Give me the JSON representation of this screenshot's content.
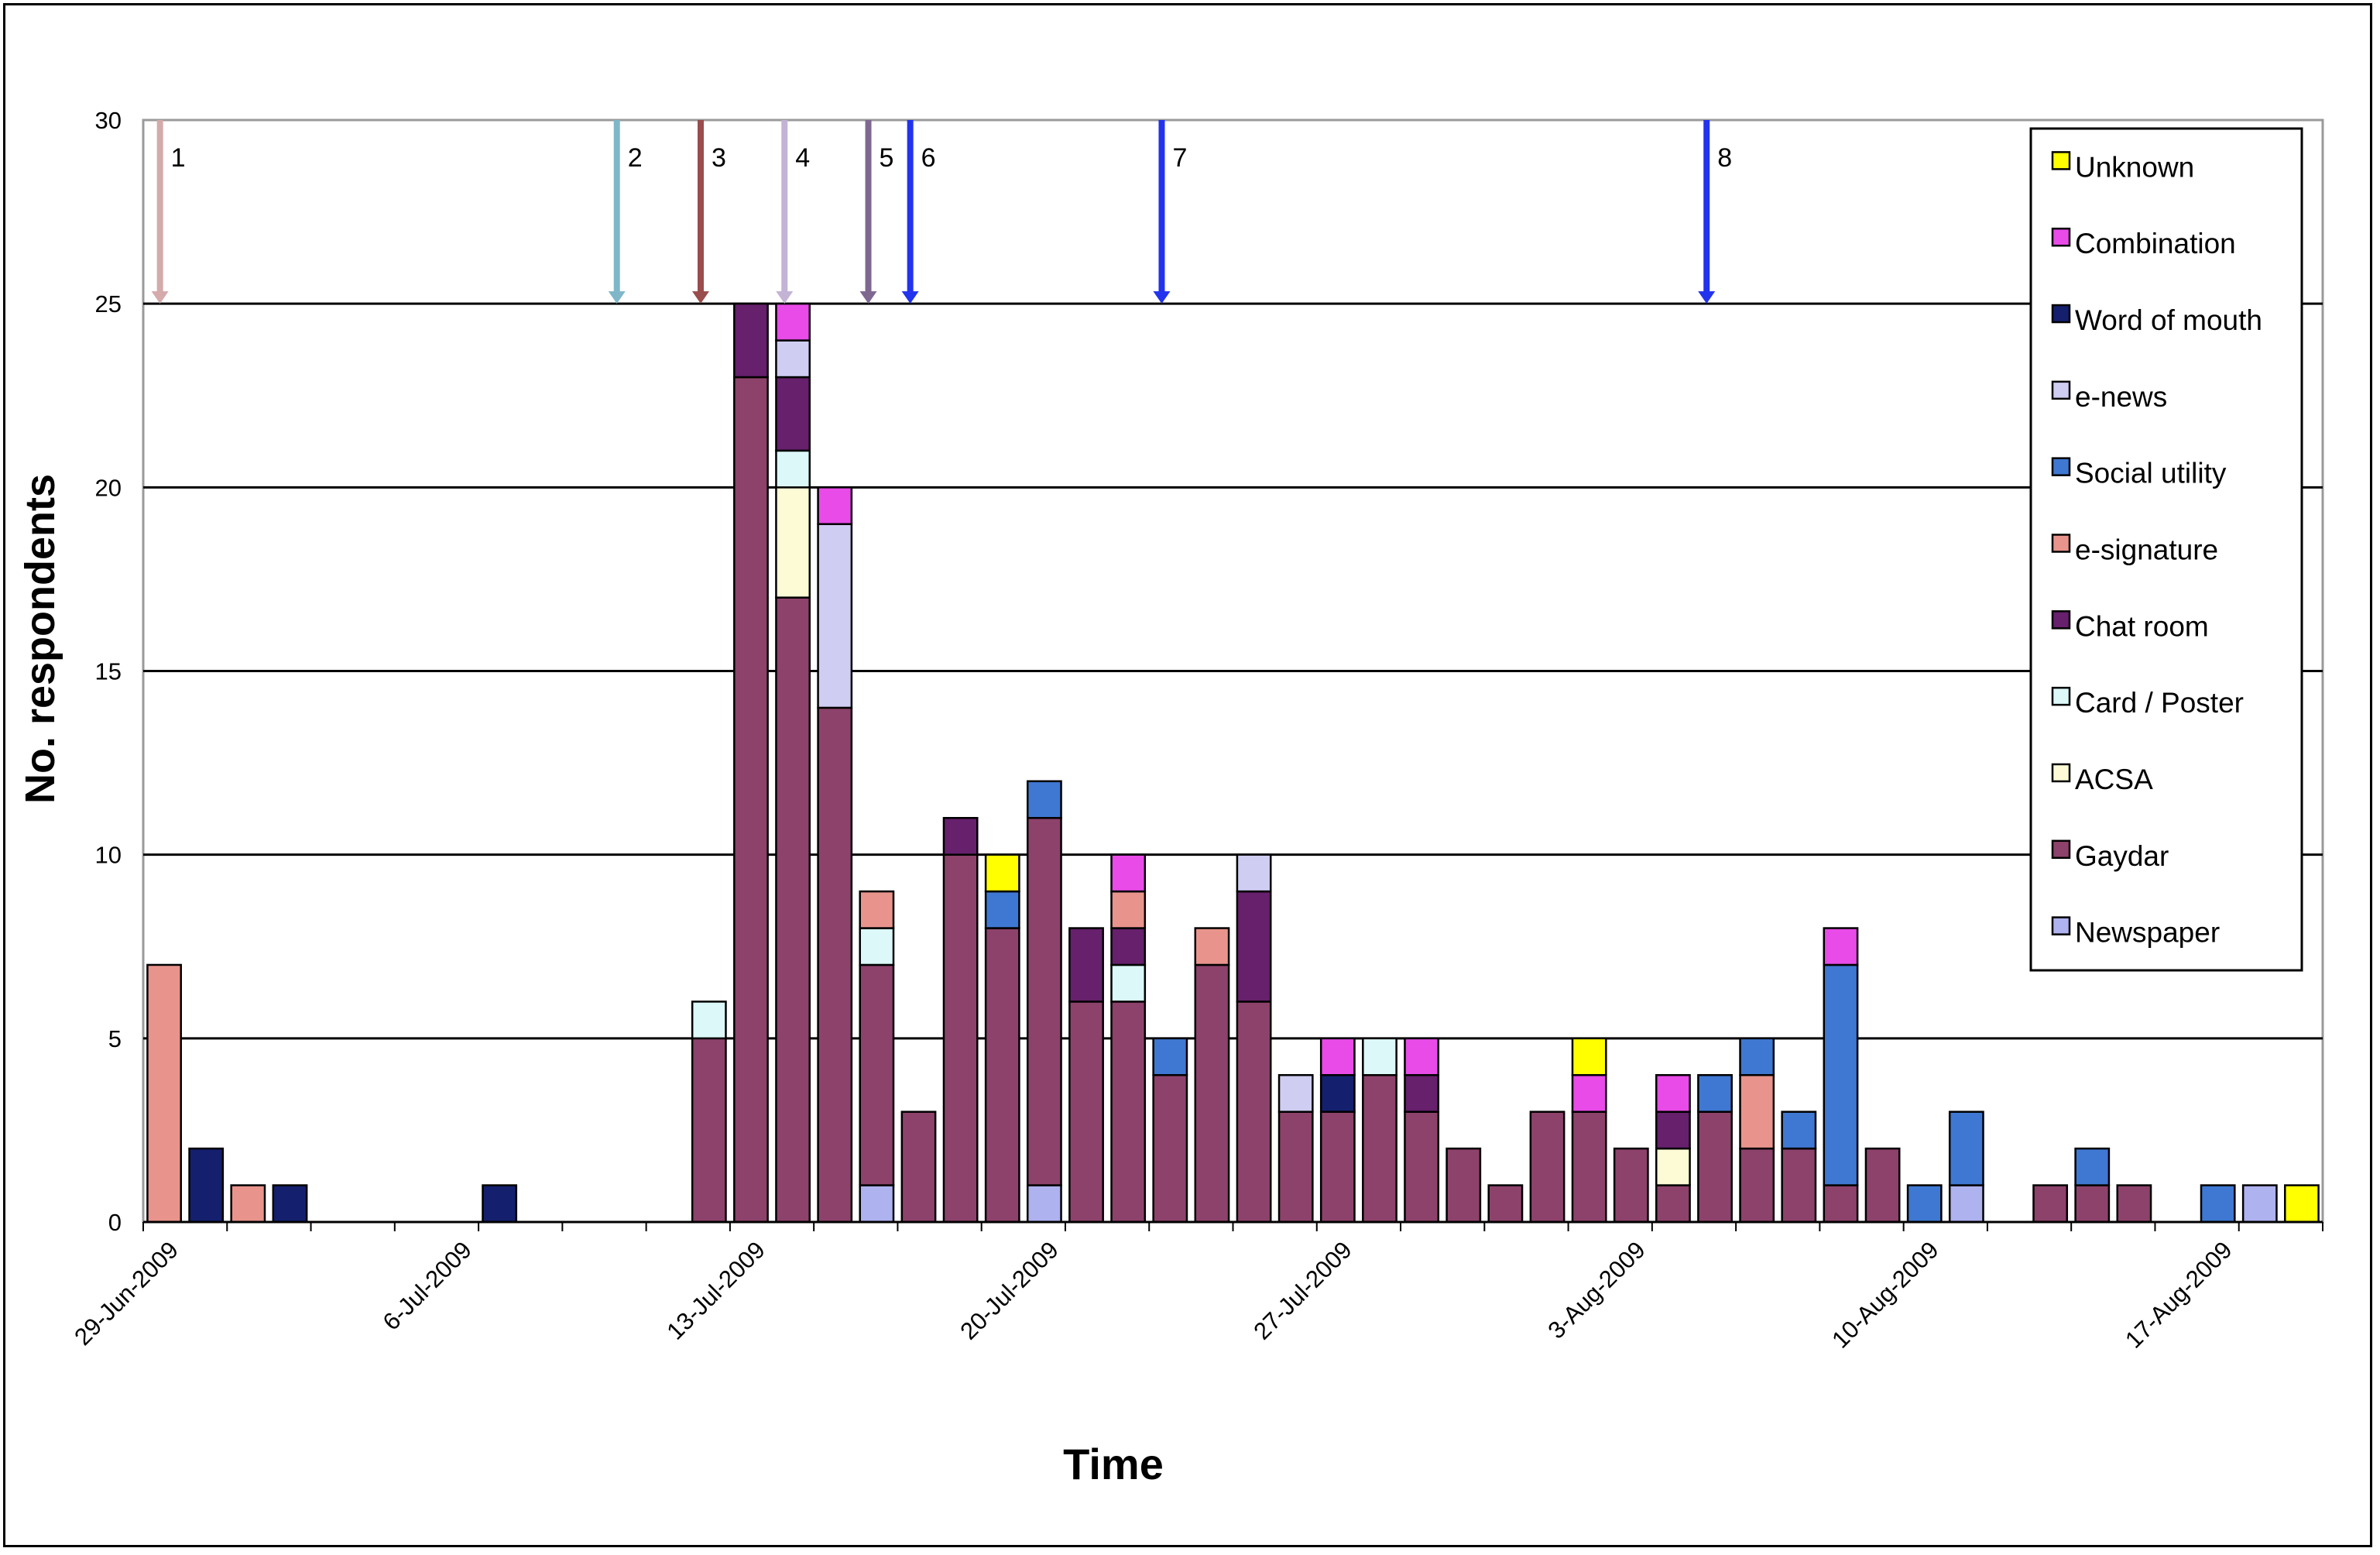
{
  "chart_data": {
    "type": "bar",
    "stacked": true,
    "xlabel": "Time",
    "ylabel": "No. respondents",
    "ylim": [
      0,
      30
    ],
    "yticks": [
      0,
      5,
      10,
      15,
      20,
      25,
      30
    ],
    "grid": true,
    "legend_position": "right",
    "x_tick_labels": [
      "29-Jun-2009",
      "6-Jul-2009",
      "13-Jul-2009",
      "20-Jul-2009",
      "27-Jul-2009",
      "3-Aug-2009",
      "10-Aug-2009",
      "17-Aug-2009"
    ],
    "x_tick_day_index": [
      0,
      7,
      14,
      21,
      28,
      35,
      42,
      49
    ],
    "stack_order": [
      "Newspaper",
      "Gaydar",
      "ACSA",
      "Card / Poster",
      "Chat room",
      "e-signature",
      "Social utility",
      "e-news",
      "Word of mouth",
      "Combination",
      "Unknown"
    ],
    "legend_order": [
      "Unknown",
      "Combination",
      "Word of mouth",
      "e-news",
      "Social utility",
      "e-signature",
      "Chat room",
      "Card / Poster",
      "ACSA",
      "Gaydar",
      "Newspaper"
    ],
    "series_colors": {
      "Unknown": "#ffff00",
      "Combination": "#e84be8",
      "Word of mouth": "#14206e",
      "e-news": "#cfcdf2",
      "Social utility": "#3f78d2",
      "e-signature": "#e8948c",
      "Chat room": "#66206c",
      "Card / Poster": "#dcf8f8",
      "ACSA": "#fdfbd6",
      "Gaydar": "#8d426b",
      "Newspaper": "#aeb2ef"
    },
    "days": [
      {
        "day": 0,
        "segments": [
          [
            "e-signature",
            7
          ]
        ]
      },
      {
        "day": 1,
        "segments": [
          [
            "Word of mouth",
            2
          ]
        ]
      },
      {
        "day": 2,
        "segments": [
          [
            "e-signature",
            1
          ]
        ]
      },
      {
        "day": 3,
        "segments": [
          [
            "Word of mouth",
            1
          ]
        ]
      },
      {
        "day": 8,
        "segments": [
          [
            "Word of mouth",
            1
          ]
        ]
      },
      {
        "day": 13,
        "segments": [
          [
            "Gaydar",
            5
          ],
          [
            "Card / Poster",
            1
          ]
        ]
      },
      {
        "day": 14,
        "segments": [
          [
            "Gaydar",
            23
          ],
          [
            "Chat room",
            2
          ]
        ]
      },
      {
        "day": 15,
        "segments": [
          [
            "Gaydar",
            17
          ],
          [
            "ACSA",
            3
          ],
          [
            "Card / Poster",
            1
          ],
          [
            "Chat room",
            2
          ],
          [
            "e-news",
            1
          ],
          [
            "Combination",
            1
          ]
        ]
      },
      {
        "day": 16,
        "segments": [
          [
            "Gaydar",
            14
          ],
          [
            "e-news",
            5
          ],
          [
            "Combination",
            1
          ]
        ]
      },
      {
        "day": 17,
        "segments": [
          [
            "Newspaper",
            1
          ],
          [
            "Gaydar",
            6
          ],
          [
            "Card / Poster",
            1
          ],
          [
            "e-signature",
            1
          ]
        ]
      },
      {
        "day": 18,
        "segments": [
          [
            "Gaydar",
            3
          ]
        ]
      },
      {
        "day": 19,
        "segments": [
          [
            "Gaydar",
            10
          ],
          [
            "Chat room",
            1
          ]
        ]
      },
      {
        "day": 20,
        "segments": [
          [
            "Gaydar",
            8
          ],
          [
            "Social utility",
            1
          ],
          [
            "Unknown",
            1
          ]
        ]
      },
      {
        "day": 21,
        "segments": [
          [
            "Newspaper",
            1
          ],
          [
            "Gaydar",
            10
          ],
          [
            "Social utility",
            1
          ]
        ]
      },
      {
        "day": 22,
        "segments": [
          [
            "Gaydar",
            6
          ],
          [
            "Chat room",
            2
          ]
        ]
      },
      {
        "day": 23,
        "segments": [
          [
            "Gaydar",
            6
          ],
          [
            "Card / Poster",
            1
          ],
          [
            "Chat room",
            1
          ],
          [
            "e-signature",
            1
          ],
          [
            "Combination",
            1
          ]
        ]
      },
      {
        "day": 24,
        "segments": [
          [
            "Gaydar",
            4
          ],
          [
            "Social utility",
            1
          ]
        ]
      },
      {
        "day": 25,
        "segments": [
          [
            "Gaydar",
            7
          ],
          [
            "e-signature",
            1
          ]
        ]
      },
      {
        "day": 26,
        "segments": [
          [
            "Gaydar",
            6
          ],
          [
            "Chat room",
            3
          ],
          [
            "e-news",
            1
          ]
        ]
      },
      {
        "day": 27,
        "segments": [
          [
            "Gaydar",
            3
          ],
          [
            "e-news",
            1
          ]
        ]
      },
      {
        "day": 28,
        "segments": [
          [
            "Gaydar",
            3
          ],
          [
            "Word of mouth",
            1
          ],
          [
            "Combination",
            1
          ]
        ]
      },
      {
        "day": 29,
        "segments": [
          [
            "Gaydar",
            4
          ],
          [
            "Card / Poster",
            1
          ]
        ]
      },
      {
        "day": 30,
        "segments": [
          [
            "Gaydar",
            3
          ],
          [
            "Chat room",
            1
          ],
          [
            "Combination",
            1
          ]
        ]
      },
      {
        "day": 31,
        "segments": [
          [
            "Gaydar",
            2
          ]
        ]
      },
      {
        "day": 32,
        "segments": [
          [
            "Gaydar",
            1
          ]
        ]
      },
      {
        "day": 33,
        "segments": [
          [
            "Gaydar",
            3
          ]
        ]
      },
      {
        "day": 34,
        "segments": [
          [
            "Gaydar",
            3
          ],
          [
            "Combination",
            1
          ],
          [
            "Unknown",
            1
          ]
        ]
      },
      {
        "day": 35,
        "segments": [
          [
            "Gaydar",
            2
          ]
        ]
      },
      {
        "day": 36,
        "segments": [
          [
            "Gaydar",
            1
          ],
          [
            "ACSA",
            1
          ],
          [
            "Chat room",
            1
          ],
          [
            "Combination",
            1
          ]
        ]
      },
      {
        "day": 37,
        "segments": [
          [
            "Gaydar",
            3
          ],
          [
            "Social utility",
            1
          ]
        ]
      },
      {
        "day": 38,
        "segments": [
          [
            "Gaydar",
            2
          ],
          [
            "e-signature",
            2
          ],
          [
            "Social utility",
            1
          ]
        ]
      },
      {
        "day": 39,
        "segments": [
          [
            "Gaydar",
            2
          ],
          [
            "Social utility",
            1
          ]
        ]
      },
      {
        "day": 40,
        "segments": [
          [
            "Gaydar",
            1
          ],
          [
            "Social utility",
            6
          ],
          [
            "Combination",
            1
          ]
        ]
      },
      {
        "day": 41,
        "segments": [
          [
            "Gaydar",
            2
          ]
        ]
      },
      {
        "day": 42,
        "segments": [
          [
            "Social utility",
            1
          ]
        ]
      },
      {
        "day": 43,
        "segments": [
          [
            "Newspaper",
            1
          ],
          [
            "Social utility",
            2
          ]
        ]
      },
      {
        "day": 45,
        "segments": [
          [
            "Gaydar",
            1
          ]
        ]
      },
      {
        "day": 46,
        "segments": [
          [
            "Gaydar",
            1
          ],
          [
            "Social utility",
            1
          ]
        ]
      },
      {
        "day": 47,
        "segments": [
          [
            "Gaydar",
            1
          ]
        ]
      },
      {
        "day": 49,
        "segments": [
          [
            "Social utility",
            1
          ]
        ]
      },
      {
        "day": 50,
        "segments": [
          [
            "Newspaper",
            1
          ]
        ]
      },
      {
        "day": 51,
        "segments": [
          [
            "Unknown",
            1
          ]
        ]
      }
    ],
    "event_markers": [
      {
        "label": "1",
        "day": 0.4,
        "color": "#d4aaaa"
      },
      {
        "label": "2",
        "day": 11.3,
        "color": "#7fb7c9"
      },
      {
        "label": "3",
        "day": 13.3,
        "color": "#994d4d"
      },
      {
        "label": "4",
        "day": 15.3,
        "color": "#c3b3d4"
      },
      {
        "label": "5",
        "day": 17.3,
        "color": "#7e6890"
      },
      {
        "label": "6",
        "day": 18.3,
        "color": "#2233ee"
      },
      {
        "label": "7",
        "day": 24.3,
        "color": "#2233ee"
      },
      {
        "label": "8",
        "day": 37.3,
        "color": "#2233ee"
      }
    ]
  }
}
